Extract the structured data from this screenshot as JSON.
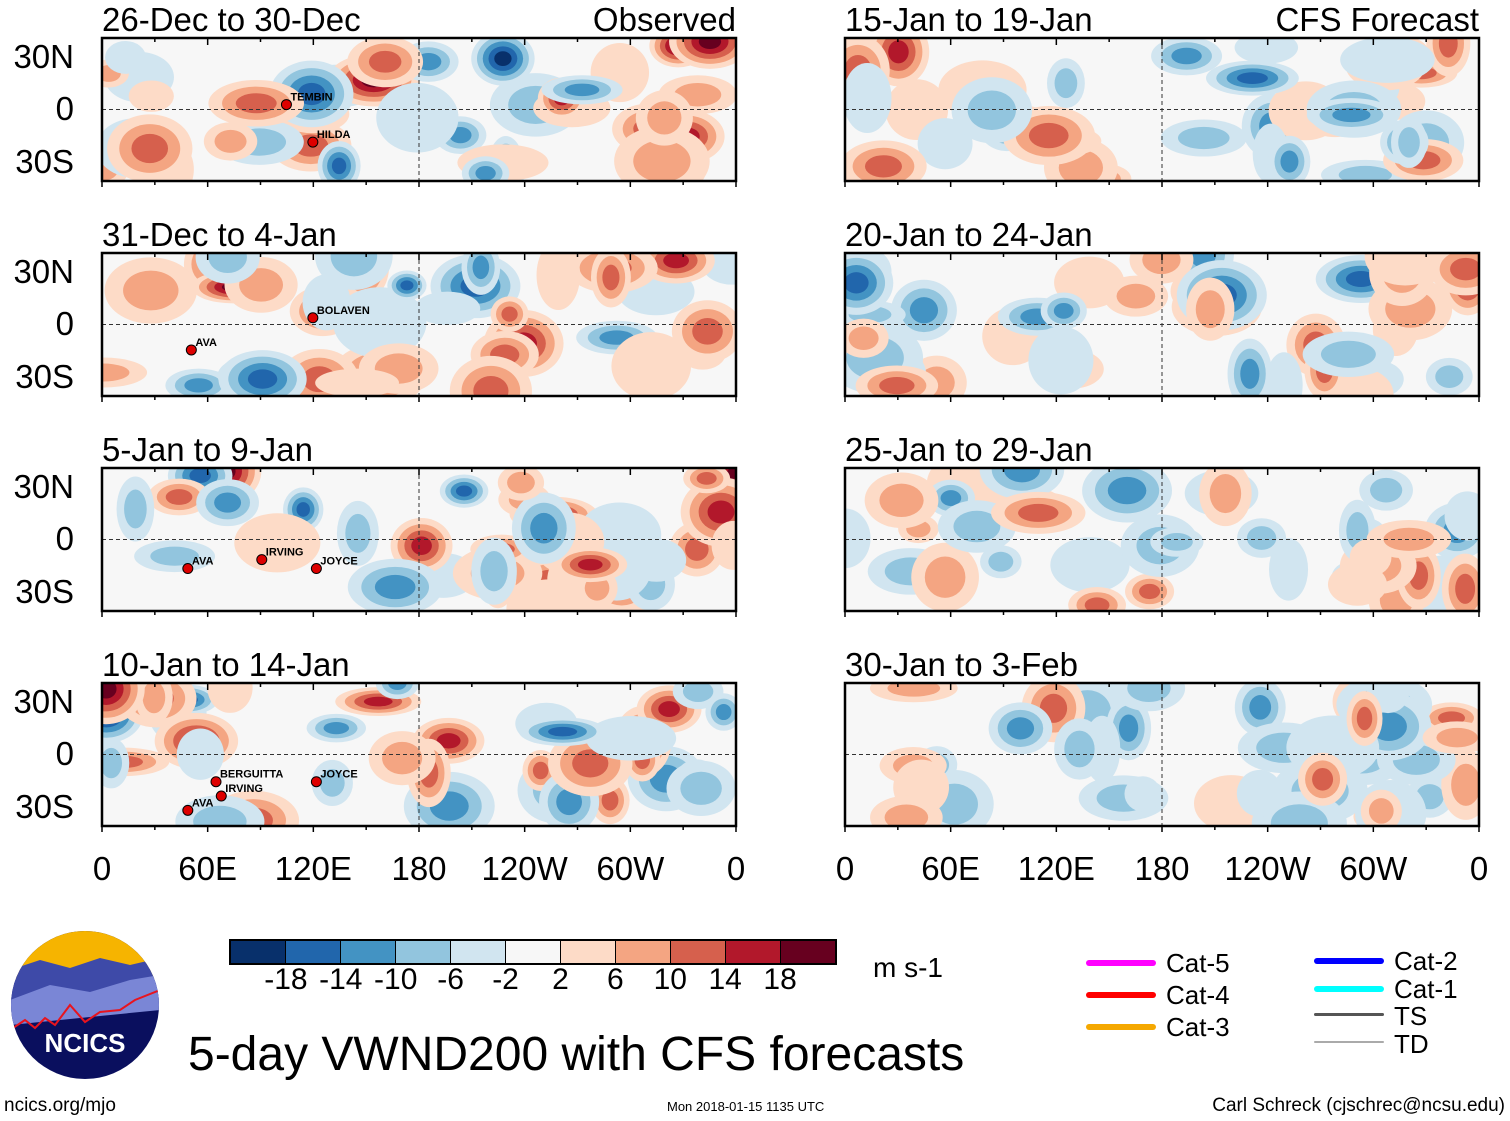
{
  "title": "5-day VWND200 with CFS forecasts",
  "logo_text": "NCICS",
  "footer": {
    "url": "ncics.org/mjo",
    "timestamp": "Mon 2018-01-15 1135 UTC",
    "author": "Carl Schreck (cjschrec@ncsu.edu)"
  },
  "columns": {
    "left_label": "Observed",
    "right_label": "CFS Forecast"
  },
  "lat_labels": [
    "30N",
    "0",
    "30S"
  ],
  "lon_labels": [
    "0",
    "60E",
    "120E",
    "180",
    "120W",
    "60W",
    "0"
  ],
  "colorbar": {
    "units": "m s-1",
    "ticks": [
      "-18",
      "-14",
      "-10",
      "-6",
      "-2",
      "2",
      "6",
      "10",
      "14",
      "18"
    ],
    "colors": [
      "#08306b",
      "#2166ac",
      "#4393c3",
      "#92c5de",
      "#d1e5f0",
      "#f7f7f7",
      "#fddbc7",
      "#f4a582",
      "#d6604d",
      "#b2182b",
      "#67001f"
    ]
  },
  "legend": [
    {
      "label": "Cat-5",
      "color": "#ff00ff"
    },
    {
      "label": "Cat-4",
      "color": "#ff0000"
    },
    {
      "label": "Cat-3",
      "color": "#f5a800"
    },
    {
      "label": "Cat-2",
      "color": "#0000ff"
    },
    {
      "label": "Cat-1",
      "color": "#00ffff"
    },
    {
      "label": "TS",
      "color": "#555555"
    },
    {
      "label": "TD",
      "color": "#aaaaaa"
    }
  ],
  "chart_data": {
    "type": "heatmap",
    "variable": "200-hPa meridional wind anomaly",
    "units": "m s-1",
    "xlim": [
      0,
      360
    ],
    "ylim": [
      -40,
      40
    ],
    "panels": [
      {
        "title": "26-Dec to 30-Dec",
        "source": "Observed",
        "storms": [
          {
            "name": "TEMBIN",
            "lon": 107,
            "lat": 5
          },
          {
            "name": "HILDA",
            "lon": 122,
            "lat": -16
          }
        ]
      },
      {
        "title": "31-Dec to 4-Jan",
        "source": "Observed",
        "storms": [
          {
            "name": "BOLAVEN",
            "lon": 122,
            "lat": 6
          },
          {
            "name": "AVA",
            "lon": 53,
            "lat": -12
          }
        ]
      },
      {
        "title": "5-Jan to 9-Jan",
        "source": "Observed",
        "storms": [
          {
            "name": "AVA",
            "lon": 51,
            "lat": -14
          },
          {
            "name": "IRVING",
            "lon": 93,
            "lat": -9
          },
          {
            "name": "JOYCE",
            "lon": 124,
            "lat": -14
          }
        ]
      },
      {
        "title": "10-Jan to 14-Jan",
        "source": "Observed",
        "storms": [
          {
            "name": "BERGUITTA",
            "lon": 67,
            "lat": -13
          },
          {
            "name": "IRVING",
            "lon": 70,
            "lat": -21
          },
          {
            "name": "JOYCE",
            "lon": 124,
            "lat": -13
          },
          {
            "name": "AVA",
            "lon": 51,
            "lat": -29
          }
        ]
      },
      {
        "title": "15-Jan to 19-Jan",
        "source": "CFS Forecast",
        "storms": []
      },
      {
        "title": "20-Jan to 24-Jan",
        "source": "CFS Forecast",
        "storms": []
      },
      {
        "title": "25-Jan to 29-Jan",
        "source": "CFS Forecast",
        "storms": []
      },
      {
        "title": "30-Jan to 3-Feb",
        "source": "CFS Forecast",
        "storms": []
      }
    ]
  }
}
